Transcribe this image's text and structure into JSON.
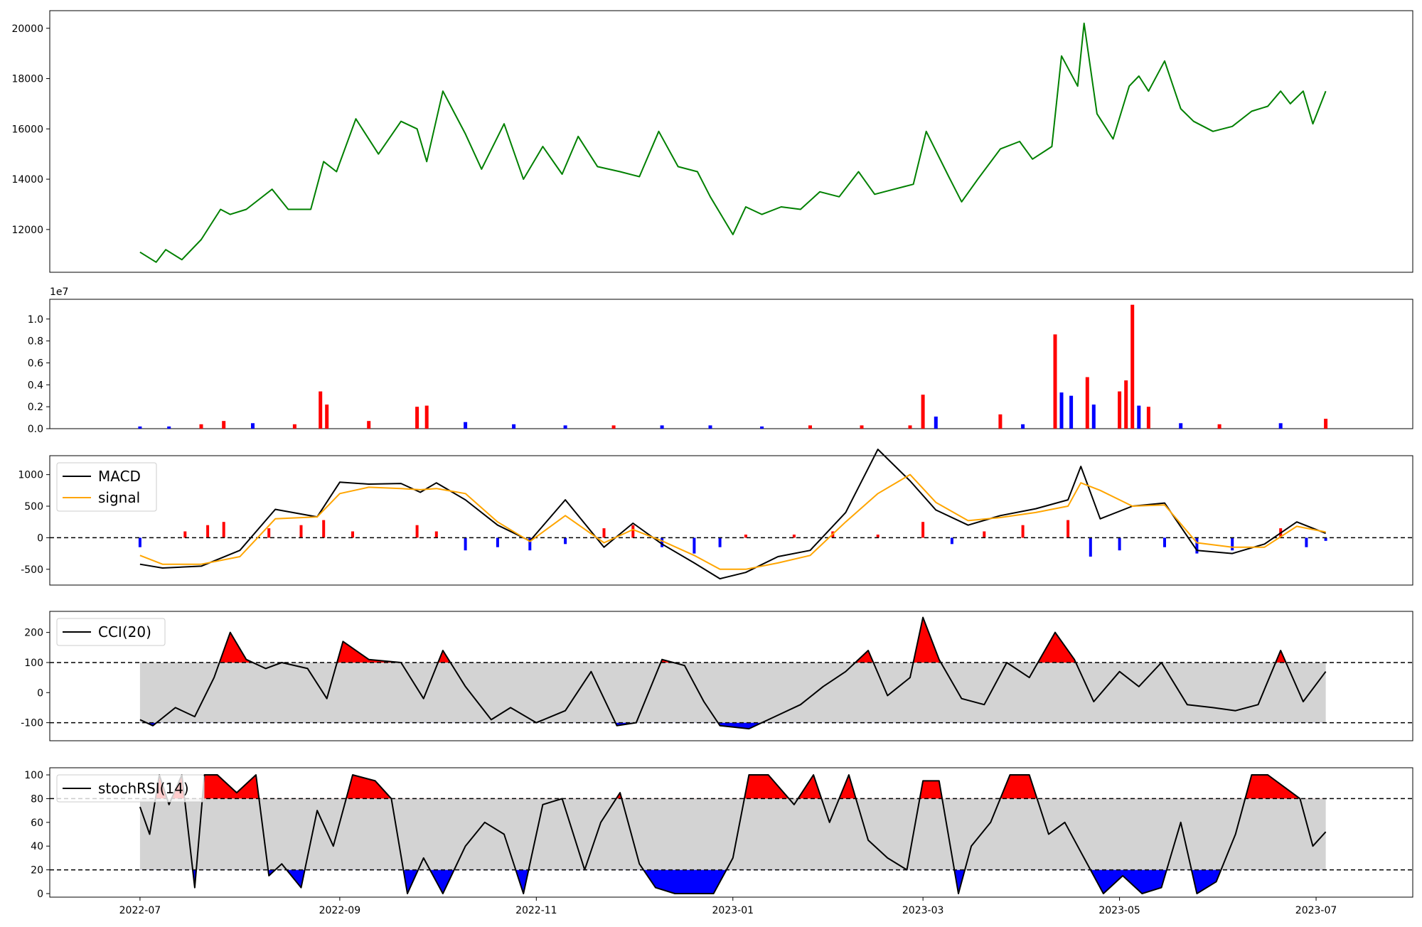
{
  "chart_data": [
    {
      "type": "line",
      "panel": "price",
      "title": "",
      "xlabel": "",
      "ylabel": "",
      "ylim": [
        10300,
        20700
      ],
      "yticks": [
        12000,
        14000,
        16000,
        18000,
        20000
      ],
      "grid": false,
      "colors": {
        "line": "#008000"
      },
      "series": [
        {
          "x": [
            "2022-07-01",
            "2022-07-06",
            "2022-07-09",
            "2022-07-14",
            "2022-07-20",
            "2022-07-26",
            "2022-07-29",
            "2022-08-03",
            "2022-08-11",
            "2022-08-16",
            "2022-08-23",
            "2022-08-27",
            "2022-08-31",
            "2022-09-06",
            "2022-09-13",
            "2022-09-20",
            "2022-09-25",
            "2022-09-28",
            "2022-10-03",
            "2022-10-10",
            "2022-10-15",
            "2022-10-22",
            "2022-10-28",
            "2022-11-03",
            "2022-11-09",
            "2022-11-14",
            "2022-11-20",
            "2022-11-27",
            "2022-12-03",
            "2022-12-09",
            "2022-12-15",
            "2022-12-21",
            "2022-12-25",
            "2023-01-01",
            "2023-01-05",
            "2023-01-10",
            "2023-01-16",
            "2023-01-22",
            "2023-01-28",
            "2023-02-03",
            "2023-02-09",
            "2023-02-14",
            "2023-02-20",
            "2023-02-26",
            "2023-03-02",
            "2023-03-09",
            "2023-03-13",
            "2023-03-18",
            "2023-03-25",
            "2023-03-31",
            "2023-04-04",
            "2023-04-10",
            "2023-04-13",
            "2023-04-18",
            "2023-04-20",
            "2023-04-24",
            "2023-04-29",
            "2023-05-04",
            "2023-05-07",
            "2023-05-10",
            "2023-05-15",
            "2023-05-20",
            "2023-05-24",
            "2023-05-30",
            "2023-06-05",
            "2023-06-11",
            "2023-06-16",
            "2023-06-20",
            "2023-06-23",
            "2023-06-27",
            "2023-06-30",
            "2023-07-04"
          ],
          "y": [
            11100,
            10700,
            11200,
            10800,
            11600,
            12800,
            12600,
            12800,
            13600,
            12800,
            12800,
            14700,
            14300,
            16400,
            15000,
            16300,
            16000,
            14700,
            17500,
            15800,
            14400,
            16200,
            14000,
            15300,
            14200,
            15700,
            14500,
            14300,
            14100,
            15900,
            14500,
            14300,
            13300,
            11800,
            12900,
            12600,
            12900,
            12800,
            13500,
            13300,
            14300,
            13400,
            13600,
            13800,
            15900,
            14100,
            13100,
            14000,
            15200,
            15500,
            14800,
            15300,
            18900,
            17700,
            20200,
            16600,
            15600,
            17700,
            18100,
            17500,
            18700,
            16800,
            16300,
            15900,
            16100,
            16700,
            16900,
            17500,
            17000,
            17500,
            16200,
            17500
          ]
        }
      ]
    },
    {
      "type": "bar",
      "panel": "volume",
      "title": "",
      "xlabel": "",
      "ylabel": "",
      "ylim": [
        0,
        11800000
      ],
      "yticks": [
        0,
        0.2,
        0.4,
        0.6,
        0.8,
        1.0
      ],
      "ytick_labels": [
        "0.0",
        "0.2",
        "0.4",
        "0.6",
        "0.8",
        "1.0"
      ],
      "offset_label": "1e7",
      "colors": {
        "up": "#ff0000",
        "down": "#0000ff"
      },
      "series": [
        {
          "x": [
            "2022-07-01",
            "2022-07-10",
            "2022-07-20",
            "2022-07-27",
            "2022-08-05",
            "2022-08-18",
            "2022-08-26",
            "2022-08-28",
            "2022-09-10",
            "2022-09-25",
            "2022-09-28",
            "2022-10-10",
            "2022-10-25",
            "2022-11-10",
            "2022-11-25",
            "2022-12-10",
            "2022-12-25",
            "2023-01-10",
            "2023-01-25",
            "2023-02-10",
            "2023-02-25",
            "2023-03-01",
            "2023-03-05",
            "2023-03-25",
            "2023-04-01",
            "2023-04-11",
            "2023-04-13",
            "2023-04-16",
            "2023-04-21",
            "2023-04-23",
            "2023-05-01",
            "2023-05-03",
            "2023-05-05",
            "2023-05-07",
            "2023-05-10",
            "2023-05-20",
            "2023-06-01",
            "2023-06-20",
            "2023-07-04"
          ],
          "y": [
            200000,
            200000,
            400000,
            700000,
            500000,
            400000,
            3400000,
            2200000,
            700000,
            2000000,
            2100000,
            600000,
            400000,
            300000,
            300000,
            300000,
            300000,
            200000,
            300000,
            300000,
            300000,
            3100000,
            1100000,
            1300000,
            400000,
            8600000,
            3300000,
            3000000,
            4700000,
            2200000,
            3400000,
            4400000,
            11300000,
            2100000,
            2000000,
            500000,
            400000,
            500000,
            900000
          ],
          "dir": [
            "down",
            "down",
            "up",
            "up",
            "down",
            "up",
            "up",
            "up",
            "up",
            "up",
            "up",
            "down",
            "down",
            "down",
            "up",
            "down",
            "down",
            "down",
            "up",
            "up",
            "up",
            "up",
            "down",
            "up",
            "down",
            "up",
            "down",
            "down",
            "up",
            "down",
            "up",
            "up",
            "up",
            "down",
            "up",
            "down",
            "up",
            "down",
            "up"
          ]
        }
      ]
    },
    {
      "type": "line",
      "panel": "macd",
      "title": "",
      "xlabel": "",
      "ylabel": "",
      "ylim": [
        -750,
        1300
      ],
      "yticks": [
        -500,
        0,
        500,
        1000
      ],
      "hline": 0,
      "legend": {
        "location": "upper-left"
      },
      "colors": {
        "macd": "#000000",
        "signal": "#ffa500",
        "hist_pos": "#ff0000",
        "hist_neg": "#0000ff"
      },
      "series": [
        {
          "name": "MACD",
          "x": [
            "2022-07-01",
            "2022-07-08",
            "2022-07-20",
            "2022-08-01",
            "2022-08-12",
            "2022-08-25",
            "2022-09-01",
            "2022-09-10",
            "2022-09-20",
            "2022-09-26",
            "2022-10-01",
            "2022-10-10",
            "2022-10-20",
            "2022-10-30",
            "2022-11-10",
            "2022-11-22",
            "2022-12-01",
            "2022-12-10",
            "2022-12-20",
            "2022-12-28",
            "2023-01-05",
            "2023-01-15",
            "2023-01-25",
            "2023-02-05",
            "2023-02-15",
            "2023-02-25",
            "2023-03-05",
            "2023-03-15",
            "2023-03-25",
            "2023-04-05",
            "2023-04-15",
            "2023-04-19",
            "2023-04-25",
            "2023-05-05",
            "2023-05-15",
            "2023-05-25",
            "2023-06-05",
            "2023-06-15",
            "2023-06-25",
            "2023-07-04"
          ],
          "y": [
            -420,
            -480,
            -450,
            -200,
            450,
            330,
            880,
            850,
            860,
            720,
            870,
            600,
            200,
            -50,
            600,
            -150,
            230,
            -100,
            -400,
            -650,
            -550,
            -300,
            -200,
            400,
            1400,
            900,
            440,
            200,
            350,
            460,
            600,
            1130,
            300,
            500,
            550,
            -200,
            -250,
            -100,
            250,
            70
          ]
        },
        {
          "name": "signal",
          "x": [
            "2022-07-01",
            "2022-07-08",
            "2022-07-20",
            "2022-08-01",
            "2022-08-12",
            "2022-08-25",
            "2022-09-01",
            "2022-09-10",
            "2022-09-20",
            "2022-09-26",
            "2022-10-01",
            "2022-10-10",
            "2022-10-20",
            "2022-10-30",
            "2022-11-10",
            "2022-11-22",
            "2022-12-01",
            "2022-12-10",
            "2022-12-20",
            "2022-12-28",
            "2023-01-05",
            "2023-01-15",
            "2023-01-25",
            "2023-02-05",
            "2023-02-15",
            "2023-02-25",
            "2023-03-05",
            "2023-03-15",
            "2023-03-25",
            "2023-04-05",
            "2023-04-15",
            "2023-04-19",
            "2023-04-25",
            "2023-05-05",
            "2023-05-15",
            "2023-05-25",
            "2023-06-05",
            "2023-06-15",
            "2023-06-25",
            "2023-07-04"
          ],
          "y": [
            -280,
            -420,
            -420,
            -300,
            300,
            330,
            700,
            800,
            780,
            760,
            780,
            700,
            250,
            -60,
            350,
            -80,
            130,
            -50,
            -280,
            -500,
            -500,
            -400,
            -280,
            250,
            700,
            1000,
            560,
            270,
            320,
            400,
            500,
            870,
            750,
            500,
            520,
            -80,
            -150,
            -150,
            180,
            90
          ]
        },
        {
          "name": "",
          "x": [
            "2022-07-01",
            "2022-07-15",
            "2022-07-22",
            "2022-07-27",
            "2022-08-10",
            "2022-08-20",
            "2022-08-27",
            "2022-09-05",
            "2022-09-25",
            "2022-10-01",
            "2022-10-10",
            "2022-10-20",
            "2022-10-30",
            "2022-11-10",
            "2022-11-22",
            "2022-12-01",
            "2022-12-10",
            "2022-12-20",
            "2022-12-28",
            "2023-01-05",
            "2023-01-20",
            "2023-02-01",
            "2023-02-15",
            "2023-03-01",
            "2023-03-10",
            "2023-03-20",
            "2023-04-01",
            "2023-04-15",
            "2023-04-22",
            "2023-05-01",
            "2023-05-15",
            "2023-05-25",
            "2023-06-05",
            "2023-06-20",
            "2023-06-28",
            "2023-07-04"
          ],
          "y": [
            -150,
            100,
            200,
            250,
            150,
            200,
            280,
            100,
            200,
            100,
            -200,
            -150,
            -200,
            -100,
            150,
            200,
            -150,
            -250,
            -150,
            50,
            50,
            100,
            50,
            250,
            -100,
            100,
            200,
            280,
            -300,
            -200,
            -150,
            -250,
            -200,
            150,
            -150,
            -50
          ]
        }
      ]
    },
    {
      "type": "line",
      "panel": "cci",
      "title": "",
      "xlabel": "",
      "ylabel": "",
      "ylim": [
        -160,
        270
      ],
      "yticks": [
        -100,
        0,
        100,
        200
      ],
      "hlines": [
        100,
        -100
      ],
      "band": [
        -100,
        100
      ],
      "legend": {
        "location": "upper-left"
      },
      "colors": {
        "line": "#000000",
        "band": "#d3d3d3",
        "over": "#ff0000",
        "under": "#0000ff"
      },
      "series": [
        {
          "name": "CCI(20)",
          "x": [
            "2022-07-01",
            "2022-07-05",
            "2022-07-12",
            "2022-07-18",
            "2022-07-24",
            "2022-07-29",
            "2022-08-03",
            "2022-08-09",
            "2022-08-14",
            "2022-08-22",
            "2022-08-28",
            "2022-09-02",
            "2022-09-10",
            "2022-09-20",
            "2022-09-27",
            "2022-10-03",
            "2022-10-10",
            "2022-10-18",
            "2022-10-24",
            "2022-11-01",
            "2022-11-10",
            "2022-11-18",
            "2022-11-26",
            "2022-12-02",
            "2022-12-10",
            "2022-12-17",
            "2022-12-23",
            "2022-12-28",
            "2023-01-06",
            "2023-01-14",
            "2023-01-22",
            "2023-01-29",
            "2023-02-05",
            "2023-02-12",
            "2023-02-18",
            "2023-02-25",
            "2023-03-01",
            "2023-03-06",
            "2023-03-13",
            "2023-03-20",
            "2023-03-27",
            "2023-04-03",
            "2023-04-11",
            "2023-04-17",
            "2023-04-23",
            "2023-05-01",
            "2023-05-07",
            "2023-05-14",
            "2023-05-22",
            "2023-05-30",
            "2023-06-06",
            "2023-06-13",
            "2023-06-20",
            "2023-06-27",
            "2023-07-04"
          ],
          "y": [
            -90,
            -110,
            -50,
            -80,
            50,
            200,
            110,
            80,
            100,
            80,
            -20,
            170,
            110,
            100,
            -20,
            140,
            20,
            -90,
            -50,
            -100,
            -60,
            70,
            -110,
            -100,
            110,
            90,
            -30,
            -110,
            -120,
            -80,
            -40,
            20,
            70,
            140,
            -10,
            50,
            250,
            110,
            -20,
            -40,
            100,
            50,
            200,
            110,
            -30,
            70,
            20,
            100,
            -40,
            -50,
            -60,
            -40,
            140,
            -30,
            70
          ]
        }
      ]
    },
    {
      "type": "line",
      "panel": "stochrsi",
      "title": "",
      "xlabel": "",
      "ylabel": "",
      "ylim": [
        -3,
        106
      ],
      "yticks": [
        0,
        20,
        40,
        60,
        80,
        100
      ],
      "hlines": [
        80,
        20
      ],
      "band": [
        20,
        80
      ],
      "legend": {
        "location": "upper-left"
      },
      "colors": {
        "line": "#000000",
        "band": "#d3d3d3",
        "over": "#ff0000",
        "under": "#0000ff"
      },
      "x_tick_labels": [
        "2022-07",
        "2022-09",
        "2022-11",
        "2023-01",
        "2023-03",
        "2023-05",
        "2023-07"
      ],
      "series": [
        {
          "name": "stochRSI(14)",
          "x": [
            "2022-07-01",
            "2022-07-04",
            "2022-07-07",
            "2022-07-10",
            "2022-07-14",
            "2022-07-18",
            "2022-07-21",
            "2022-07-25",
            "2022-07-31",
            "2022-08-06",
            "2022-08-10",
            "2022-08-14",
            "2022-08-20",
            "2022-08-25",
            "2022-08-30",
            "2022-09-05",
            "2022-09-12",
            "2022-09-17",
            "2022-09-22",
            "2022-09-27",
            "2022-10-03",
            "2022-10-10",
            "2022-10-16",
            "2022-10-22",
            "2022-10-28",
            "2022-11-03",
            "2022-11-09",
            "2022-11-16",
            "2022-11-21",
            "2022-11-27",
            "2022-12-03",
            "2022-12-08",
            "2022-12-14",
            "2022-12-20",
            "2022-12-26",
            "2023-01-01",
            "2023-01-06",
            "2023-01-12",
            "2023-01-20",
            "2023-01-26",
            "2023-01-31",
            "2023-02-06",
            "2023-02-12",
            "2023-02-18",
            "2023-02-24",
            "2023-03-01",
            "2023-03-06",
            "2023-03-12",
            "2023-03-16",
            "2023-03-22",
            "2023-03-28",
            "2023-04-03",
            "2023-04-09",
            "2023-04-14",
            "2023-04-20",
            "2023-04-26",
            "2023-05-02",
            "2023-05-08",
            "2023-05-14",
            "2023-05-20",
            "2023-05-25",
            "2023-05-31",
            "2023-06-06",
            "2023-06-11",
            "2023-06-16",
            "2023-06-21",
            "2023-06-26",
            "2023-06-30",
            "2023-07-04"
          ],
          "y": [
            73,
            50,
            100,
            75,
            100,
            5,
            100,
            100,
            85,
            100,
            15,
            25,
            5,
            70,
            40,
            100,
            95,
            80,
            0,
            30,
            0,
            40,
            60,
            50,
            0,
            75,
            80,
            20,
            60,
            85,
            25,
            5,
            0,
            0,
            0,
            30,
            100,
            100,
            75,
            100,
            60,
            100,
            45,
            30,
            20,
            95,
            95,
            0,
            40,
            60,
            100,
            100,
            50,
            60,
            30,
            0,
            15,
            0,
            5,
            60,
            0,
            10,
            50,
            100,
            100,
            90,
            80,
            40,
            52
          ]
        }
      ]
    }
  ]
}
